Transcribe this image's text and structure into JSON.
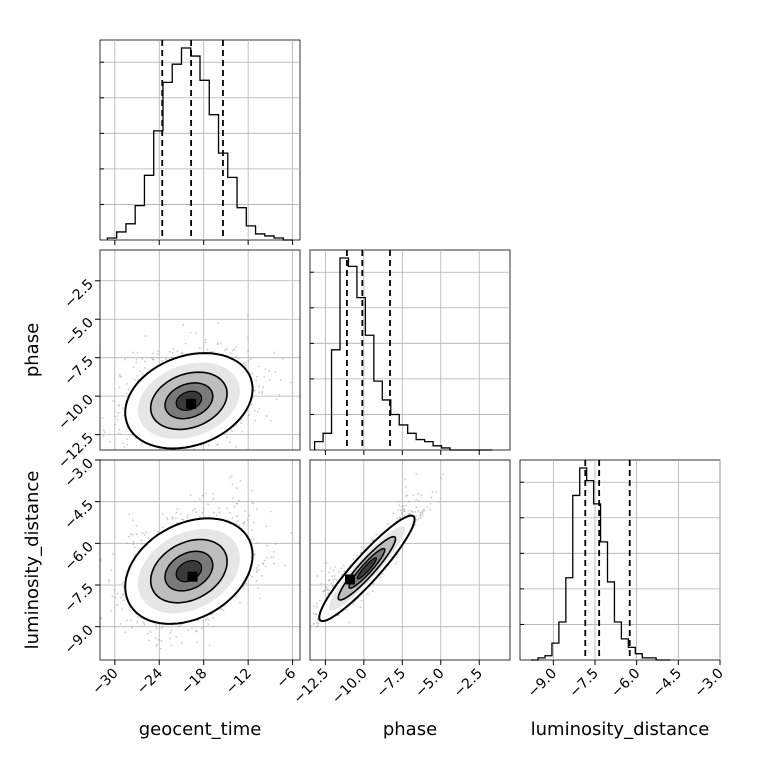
{
  "chart_data": {
    "type": "corner",
    "parameters": [
      "geocent_time",
      "phase",
      "luminosity_distance"
    ],
    "axes": {
      "geocent_time": {
        "label": "geocent_time",
        "range": [
          -32,
          -5
        ],
        "ticks": [
          -30,
          -24,
          -18,
          -12,
          -6
        ],
        "tick_labels": [
          "−30",
          "−24",
          "−18",
          "−12",
          "−6"
        ]
      },
      "phase": {
        "label": "phase",
        "range": [
          -13.5,
          -0.5
        ],
        "ticks": [
          -12.5,
          -10.0,
          -7.5,
          -5.0,
          -2.5
        ],
        "tick_labels": [
          "−12.5",
          "−10.0",
          "−7.5",
          "−5.0",
          "−2.5"
        ]
      },
      "luminosity_distance": {
        "label": "luminosity_distance",
        "range": [
          -10.2,
          -3.0
        ],
        "ticks": [
          -9.0,
          -7.5,
          -6.0,
          -4.5,
          -3.0
        ],
        "tick_labels": [
          "−9.0",
          "−7.5",
          "−6.0",
          "−4.5",
          "−3.0"
        ]
      }
    },
    "histograms": {
      "geocent_time": {
        "edges_start": -31,
        "bin_width": 1.25,
        "counts": [
          1,
          4,
          8,
          17,
          32,
          54,
          78,
          87,
          95,
          91,
          79,
          62,
          43,
          31,
          16,
          7,
          3,
          2,
          1,
          0
        ],
        "quantiles": [
          -23.6,
          -19.7,
          -15.4
        ]
      },
      "phase": {
        "edges_start": -13.2,
        "bin_width": 0.55,
        "counts": [
          4,
          8,
          48,
          92,
          88,
          73,
          55,
          33,
          24,
          17,
          12,
          8,
          5,
          4,
          2,
          1,
          0,
          0,
          0,
          0,
          0
        ],
        "quantiles": [
          -11.1,
          -10.1,
          -8.3
        ]
      },
      "luminosity_distance": {
        "edges_start": -9.8,
        "bin_width": 0.25,
        "counts": [
          0,
          1,
          2,
          8,
          18,
          39,
          78,
          91,
          85,
          74,
          56,
          37,
          18,
          10,
          6,
          3,
          1,
          1,
          0,
          0
        ],
        "quantiles": [
          -7.85,
          -7.35,
          -6.25
        ]
      }
    },
    "pairs": [
      {
        "x": "geocent_time",
        "y": "phase",
        "mean": [
          -20.0,
          -10.3
        ],
        "std": [
          4.3,
          1.55
        ],
        "correlation": 0.25,
        "mode": [
          -19.7,
          -10.5
        ]
      },
      {
        "x": "geocent_time",
        "y": "luminosity_distance",
        "mean": [
          -20.0,
          -7.0
        ],
        "std": [
          4.3,
          0.95
        ],
        "correlation": 0.3,
        "mode": [
          -19.5,
          -7.2
        ]
      },
      {
        "x": "phase",
        "y": "luminosity_distance",
        "mean": [
          -9.8,
          -6.9
        ],
        "std": [
          1.55,
          0.95
        ],
        "correlation": 0.93,
        "mode": [
          -10.9,
          -7.3
        ]
      }
    ],
    "grid": true,
    "line_color": "#000000",
    "scatter_color": "#9e9e9e"
  }
}
